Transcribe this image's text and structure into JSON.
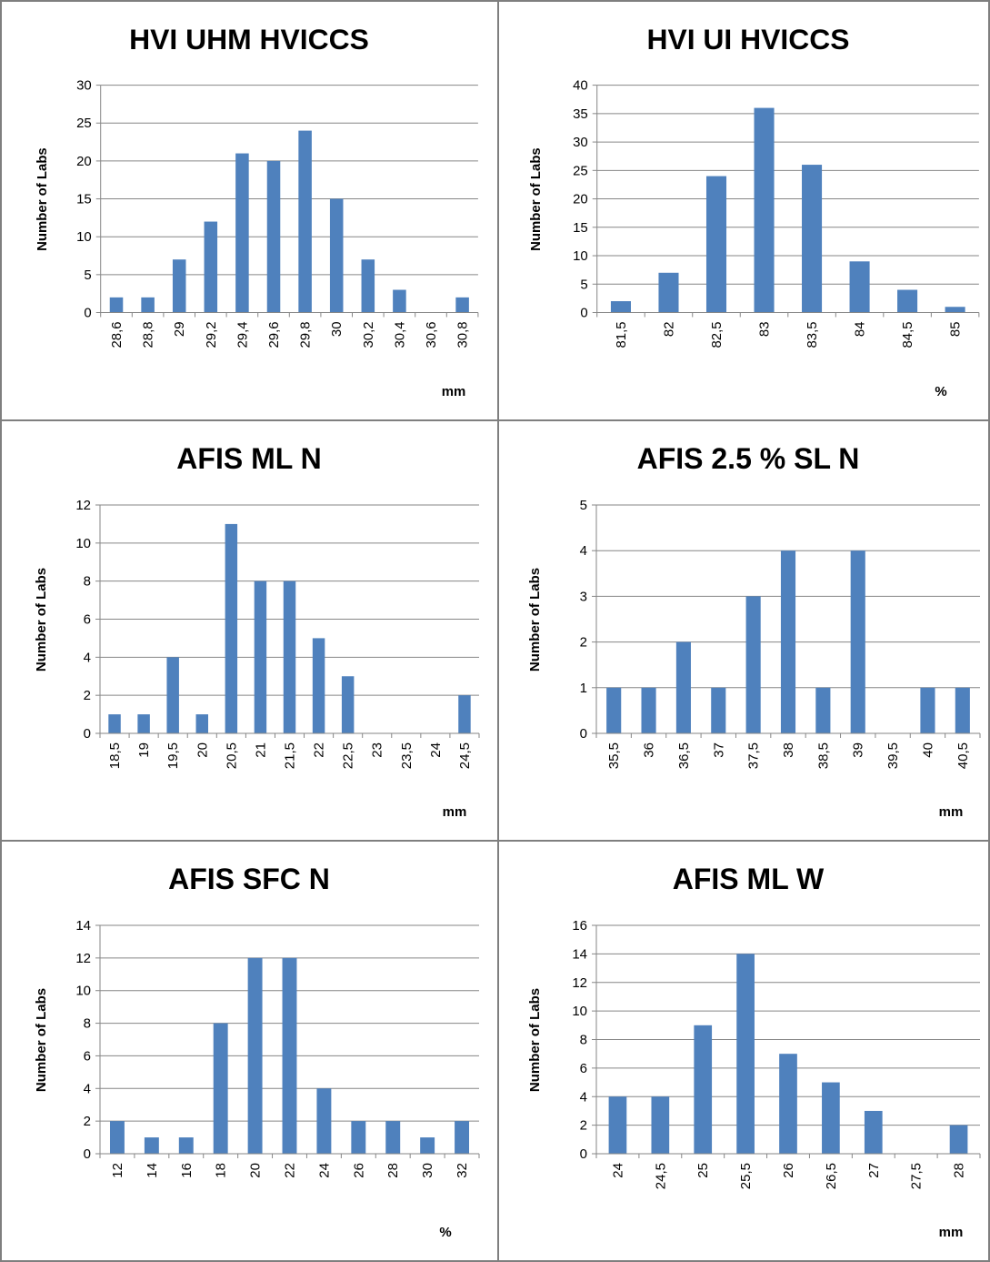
{
  "style": {
    "bar_color": "#4f81bd",
    "grid_color": "#868686",
    "axis_color": "#868686"
  },
  "chart_data": [
    {
      "type": "bar",
      "title": "HVI UHM HVICCS",
      "ylabel": "Number of Labs",
      "xlabel": "mm",
      "categories": [
        "28,6",
        "28,8",
        "29",
        "29,2",
        "29,4",
        "29,6",
        "29,8",
        "30",
        "30,2",
        "30,4",
        "30,6",
        "30,8"
      ],
      "values": [
        2,
        2,
        7,
        12,
        21,
        20,
        24,
        15,
        7,
        3,
        0,
        2
      ],
      "ylim": [
        0,
        30
      ],
      "yticks": [
        0,
        5,
        10,
        15,
        20,
        25,
        30
      ],
      "grid": true
    },
    {
      "type": "bar",
      "title": "HVI UI HVICCS",
      "ylabel": "Number of Labs",
      "xlabel": "%",
      "categories": [
        "81,5",
        "82",
        "82,5",
        "83",
        "83,5",
        "84",
        "84,5",
        "85"
      ],
      "values": [
        2,
        7,
        24,
        36,
        26,
        9,
        4,
        1
      ],
      "ylim": [
        0,
        40
      ],
      "yticks": [
        0,
        5,
        10,
        15,
        20,
        25,
        30,
        35,
        40
      ],
      "grid": true
    },
    {
      "type": "bar",
      "title": "AFIS ML N",
      "ylabel": "Number of Labs",
      "xlabel": "mm",
      "categories": [
        "18,5",
        "19",
        "19,5",
        "20",
        "20,5",
        "21",
        "21,5",
        "22",
        "22,5",
        "23",
        "23,5",
        "24",
        "24,5"
      ],
      "values": [
        1,
        1,
        4,
        1,
        11,
        8,
        8,
        5,
        3,
        0,
        0,
        0,
        2
      ],
      "ylim": [
        0,
        12
      ],
      "yticks": [
        0,
        2,
        4,
        6,
        8,
        10,
        12
      ],
      "grid": true
    },
    {
      "type": "bar",
      "title": "AFIS 2.5 % SL N",
      "ylabel": "Number of Labs",
      "xlabel": "mm",
      "categories": [
        "35,5",
        "36",
        "36,5",
        "37",
        "37,5",
        "38",
        "38,5",
        "39",
        "39,5",
        "40",
        "40,5"
      ],
      "values": [
        1,
        1,
        2,
        1,
        3,
        4,
        1,
        4,
        0,
        1,
        1
      ],
      "ylim": [
        0,
        5
      ],
      "yticks": [
        0,
        1,
        2,
        3,
        4,
        5
      ],
      "grid": true
    },
    {
      "type": "bar",
      "title": "AFIS SFC N",
      "ylabel": "Number of Labs",
      "xlabel": "%",
      "categories": [
        "12",
        "14",
        "16",
        "18",
        "20",
        "22",
        "24",
        "26",
        "28",
        "30",
        "32"
      ],
      "values": [
        2,
        1,
        1,
        8,
        12,
        12,
        4,
        2,
        2,
        1,
        2
      ],
      "ylim": [
        0,
        14
      ],
      "yticks": [
        0,
        2,
        4,
        6,
        8,
        10,
        12,
        14
      ],
      "grid": true
    },
    {
      "type": "bar",
      "title": "AFIS ML W",
      "ylabel": "Number of Labs",
      "xlabel": "mm",
      "categories": [
        "24",
        "24,5",
        "25",
        "25,5",
        "26",
        "26,5",
        "27",
        "27,5",
        "28"
      ],
      "values": [
        4,
        4,
        9,
        14,
        7,
        5,
        3,
        0,
        2
      ],
      "ylim": [
        0,
        16
      ],
      "yticks": [
        0,
        2,
        4,
        6,
        8,
        10,
        12,
        14,
        16
      ],
      "grid": true
    }
  ]
}
